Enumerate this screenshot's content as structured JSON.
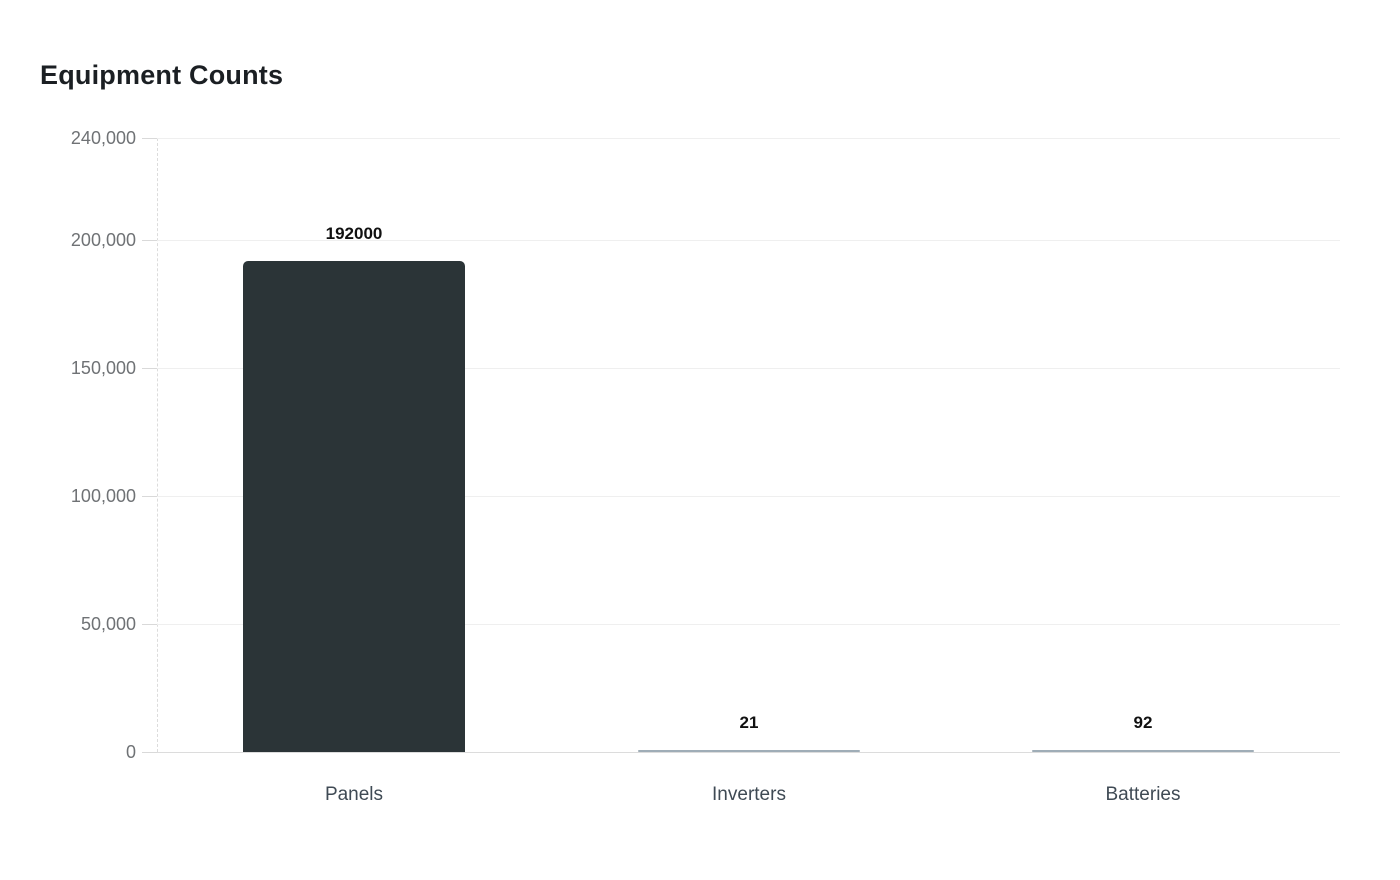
{
  "chart_data": {
    "type": "bar",
    "title": "Equipment Counts",
    "categories": [
      "Panels",
      "Inverters",
      "Batteries"
    ],
    "values": [
      192000,
      21,
      92
    ],
    "value_labels": [
      "192000",
      "21",
      "92"
    ],
    "xlabel": "",
    "ylabel": "",
    "ylim": [
      0,
      240000
    ],
    "yticks": [
      0,
      50000,
      100000,
      150000,
      200000,
      240000
    ],
    "ytick_labels": [
      "0",
      "50,000",
      "100,000",
      "150,000",
      "200,000",
      "240,000"
    ],
    "grid": true,
    "legend": false,
    "colors": {
      "bar": "#2b3437",
      "tiny_bar": "#9fadb7",
      "grid": "#efefef",
      "baseline": "#dcdcdc",
      "tick": "#d9d9d9",
      "axis_line": "#dcdcdc",
      "ytick_label": "#6f7275",
      "category_label": "#3f4a54",
      "value_label": "#111111",
      "title": "#1b1f23",
      "background": "#ffffff"
    }
  }
}
